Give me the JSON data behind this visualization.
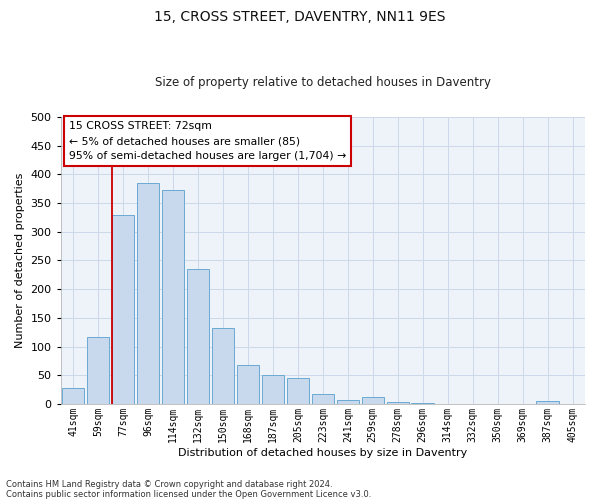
{
  "title": "15, CROSS STREET, DAVENTRY, NN11 9ES",
  "subtitle": "Size of property relative to detached houses in Daventry",
  "xlabel": "Distribution of detached houses by size in Daventry",
  "ylabel": "Number of detached properties",
  "bar_labels": [
    "41sqm",
    "59sqm",
    "77sqm",
    "96sqm",
    "114sqm",
    "132sqm",
    "150sqm",
    "168sqm",
    "187sqm",
    "205sqm",
    "223sqm",
    "241sqm",
    "259sqm",
    "278sqm",
    "296sqm",
    "314sqm",
    "332sqm",
    "350sqm",
    "369sqm",
    "387sqm",
    "405sqm"
  ],
  "bar_heights": [
    28,
    116,
    330,
    385,
    372,
    236,
    132,
    67,
    50,
    46,
    17,
    6,
    12,
    4,
    1,
    0,
    0,
    0,
    0,
    5,
    0
  ],
  "bar_color": "#c8d9ee",
  "bar_edge_color": "#6aaad4",
  "ylim": [
    0,
    500
  ],
  "yticks": [
    0,
    50,
    100,
    150,
    200,
    250,
    300,
    350,
    400,
    450,
    500
  ],
  "red_line_color": "#cc0000",
  "annotation_title": "15 CROSS STREET: 72sqm",
  "annotation_line1": "← 5% of detached houses are smaller (85)",
  "annotation_line2": "95% of semi-detached houses are larger (1,704) →",
  "annotation_box_color": "#ffffff",
  "annotation_box_edge": "#cc0000",
  "grid_color": "#ccd9ea",
  "bg_color": "#eef3fa",
  "fig_bg_color": "#ffffff",
  "footnote1": "Contains HM Land Registry data © Crown copyright and database right 2024.",
  "footnote2": "Contains public sector information licensed under the Open Government Licence v3.0."
}
